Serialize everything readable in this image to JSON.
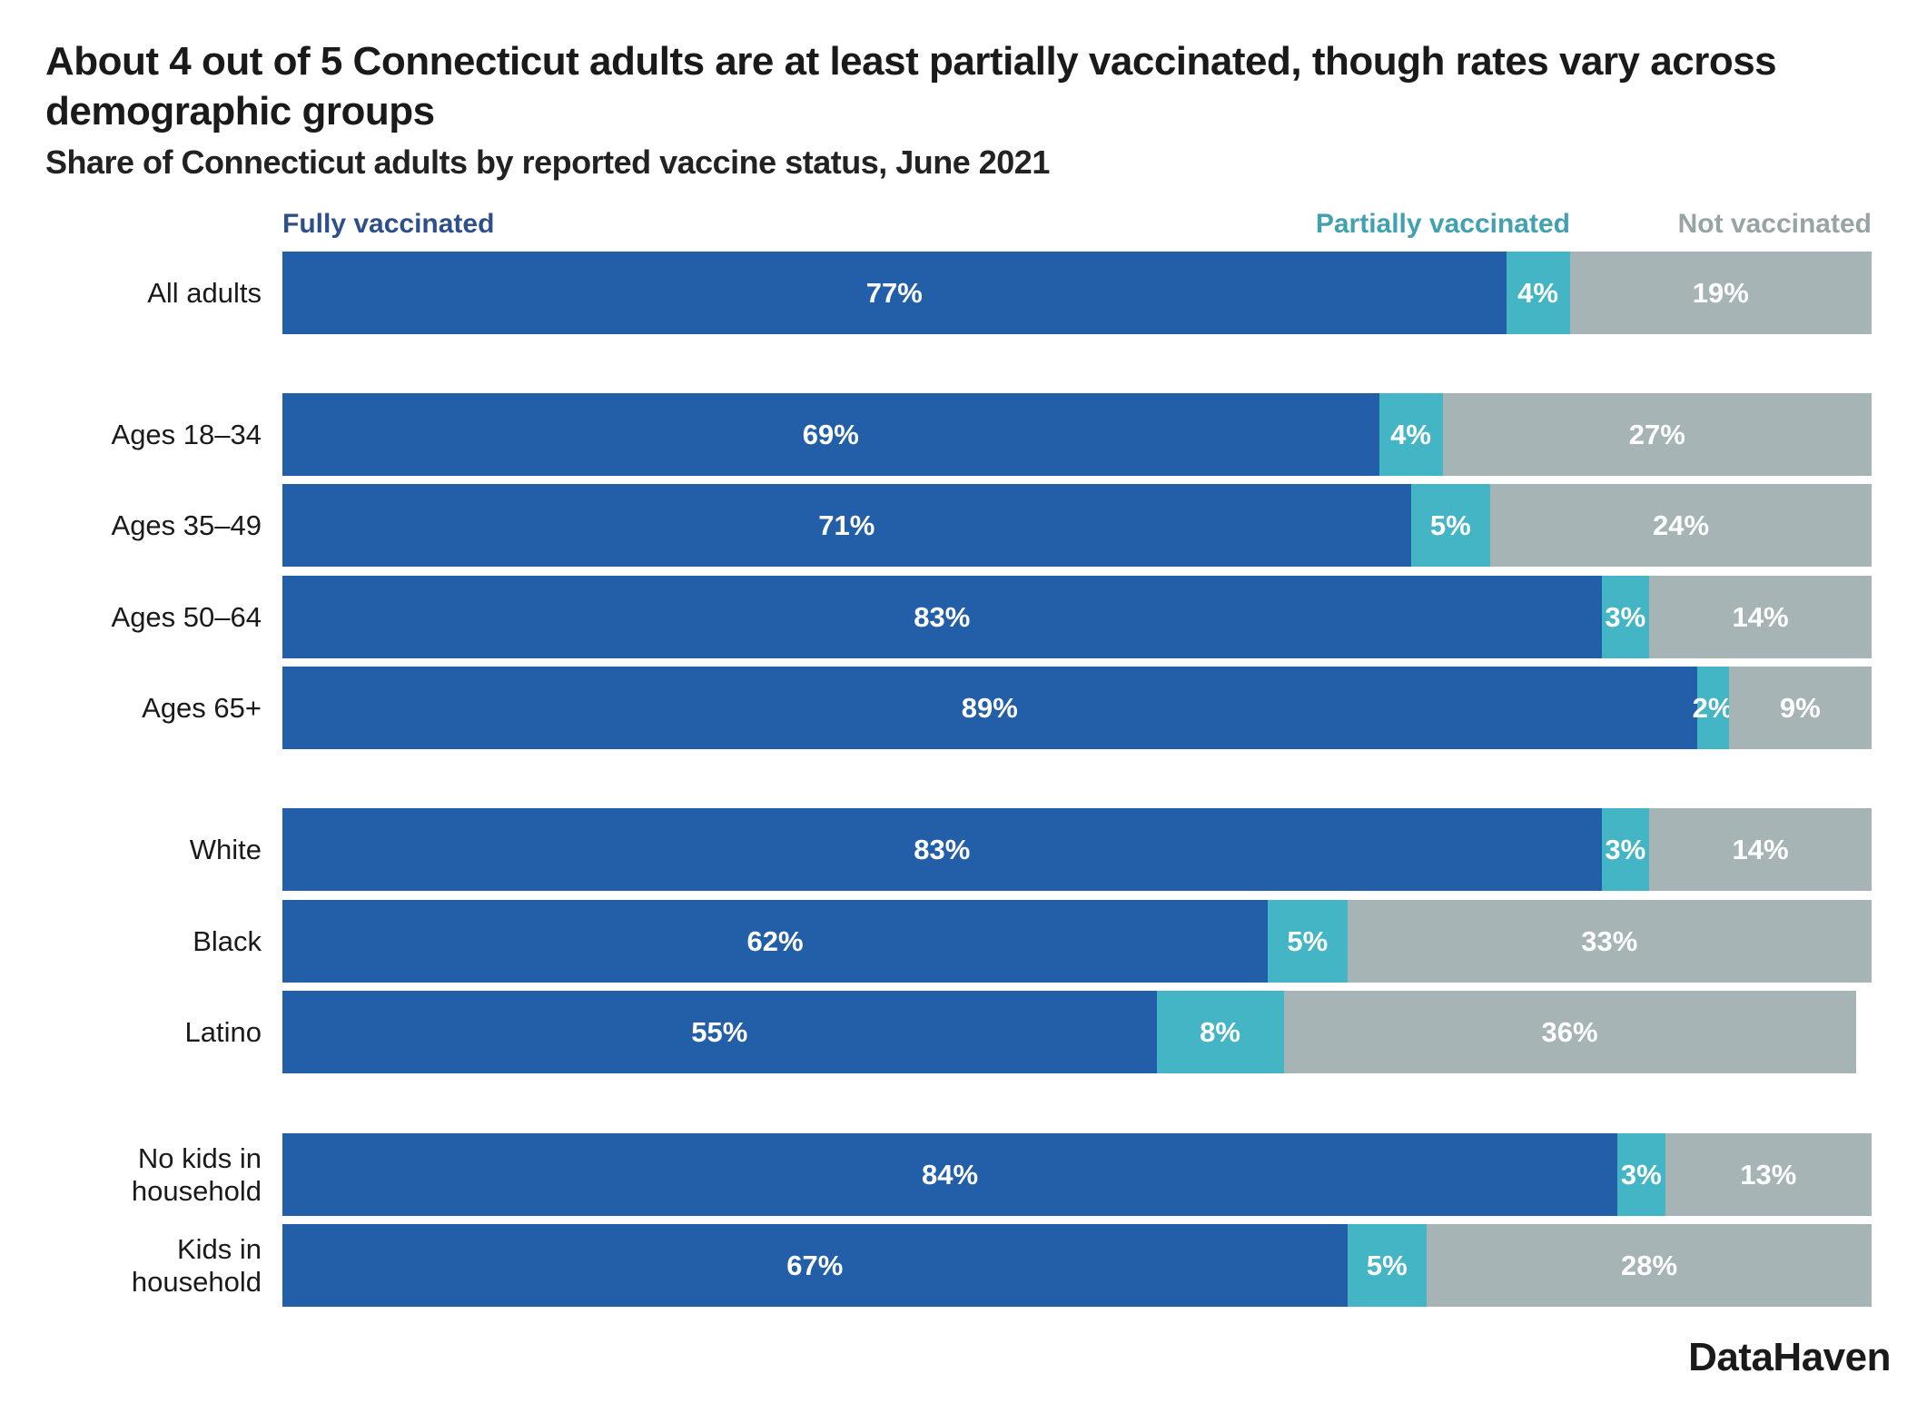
{
  "chart_data": {
    "type": "bar",
    "orientation": "horizontal",
    "stacked": true,
    "title": "About 4 out of 5 Connecticut adults are at least partially vaccinated, though rates vary across demographic groups",
    "subtitle": "Share of Connecticut adults by reported vaccine status, June 2021",
    "xlim": [
      0,
      100
    ],
    "grid": false,
    "legend_placement": "top",
    "categories": [
      "All adults",
      "Ages 18–34",
      "Ages 35–49",
      "Ages 50–64",
      "Ages 65+",
      "White",
      "Black",
      "Latino",
      "No kids in household",
      "Kids in household"
    ],
    "groups": [
      [
        0
      ],
      [
        1,
        2,
        3,
        4
      ],
      [
        5,
        6,
        7
      ],
      [
        8,
        9
      ]
    ],
    "series": [
      {
        "name": "Fully vaccinated",
        "color": "#235fa8",
        "values": [
          77,
          69,
          71,
          83,
          89,
          83,
          62,
          55,
          84,
          67
        ]
      },
      {
        "name": "Partially vaccinated",
        "color": "#43b5c4",
        "values": [
          4,
          4,
          5,
          3,
          2,
          3,
          5,
          8,
          3,
          5
        ]
      },
      {
        "name": "Not vaccinated",
        "color": "#a6b4b6",
        "values": [
          19,
          27,
          24,
          14,
          9,
          14,
          33,
          36,
          13,
          28
        ]
      }
    ],
    "legend_colors": [
      "#2f4f8a",
      "#41a1ae",
      "#97a3a5"
    ],
    "value_format": "{v}%"
  },
  "brand": {
    "logo_text": "DataHaven"
  }
}
